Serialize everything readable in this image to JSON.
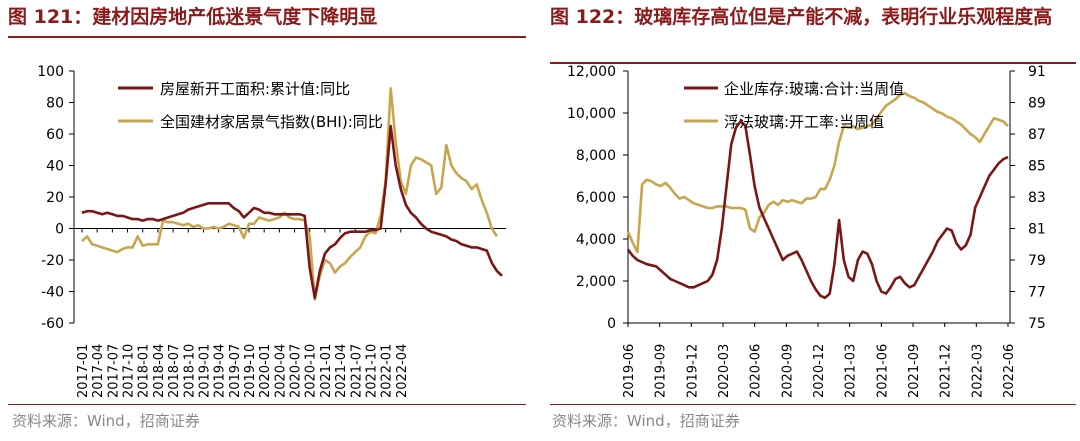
{
  "chart_data": [
    {
      "type": "line",
      "title": "图 121：建材因房地产低迷景气度下降明显",
      "source": "资料来源：Wind，招商证券",
      "ylim": [
        -60,
        100
      ],
      "yticks": [
        "100",
        "80",
        "60",
        "40",
        "20",
        "0",
        "-20",
        "-40",
        "-60"
      ],
      "x_tick_labels": [
        "2017-01",
        "2017-04",
        "2017-07",
        "2017-10",
        "2018-01",
        "2018-04",
        "2018-07",
        "2018-10",
        "2019-01",
        "2019-04",
        "2019-07",
        "2019-10",
        "2020-01",
        "2020-04",
        "2020-07",
        "2020-10",
        "2021-01",
        "2021-04",
        "2021-07",
        "2021-10",
        "2022-01",
        "2022-04"
      ],
      "series": [
        {
          "name": "房屋新开工面积:累计值:同比",
          "color": "#7b1616",
          "values": [
            10,
            11,
            11,
            10,
            9,
            10,
            9,
            8,
            8,
            7,
            6,
            6,
            5,
            6,
            6,
            5,
            6,
            7,
            8,
            9,
            10,
            12,
            13,
            14,
            15,
            16,
            16,
            16,
            16,
            16,
            13,
            11,
            7,
            10,
            13,
            12,
            10,
            10,
            9,
            9,
            9,
            9,
            9,
            9,
            8,
            -25,
            -44,
            -27,
            -16,
            -12,
            -10,
            -6,
            -3,
            -2,
            -2,
            -2,
            -2,
            -1,
            -1,
            0,
            28,
            65,
            40,
            25,
            15,
            10,
            7,
            3,
            0,
            -2,
            -3,
            -4,
            -5,
            -7,
            -8,
            -10,
            -11,
            -12,
            -12,
            -13,
            -14,
            -22,
            -27,
            -30
          ]
        },
        {
          "name": "全国建材家居景气指数(BHI):同比",
          "color": "#c8a64e",
          "values": [
            -8,
            -5,
            -10,
            -11,
            -12,
            -13,
            -14,
            -15,
            -13,
            -12,
            -12,
            -5,
            -11,
            -10,
            -10,
            -10,
            5,
            4,
            4,
            3,
            2,
            3,
            1,
            2,
            0,
            0,
            1,
            0,
            1,
            3,
            2,
            1,
            -6,
            3,
            3,
            7,
            6,
            5,
            6,
            7,
            10,
            7,
            6,
            6,
            5,
            -5,
            -45,
            -30,
            -20,
            -22,
            -28,
            -24,
            -22,
            -18,
            -15,
            -12,
            -5,
            -2,
            -3,
            8,
            30,
            89,
            55,
            30,
            22,
            40,
            45,
            44,
            42,
            40,
            22,
            26,
            53,
            40,
            35,
            32,
            30,
            25,
            28,
            18,
            10,
            0,
            -5
          ]
        }
      ]
    },
    {
      "type": "line",
      "title": "图 122：玻璃库存高位但是产能不减，表明行业乐观程度高",
      "source": "资料来源：Wind，招商证券",
      "ylim_left": [
        0,
        12000
      ],
      "ylim_right": [
        75,
        91
      ],
      "yticks_left": [
        "12,000",
        "10,000",
        "8,000",
        "6,000",
        "4,000",
        "2,000",
        "0"
      ],
      "yticks_right": [
        "91",
        "89",
        "87",
        "85",
        "83",
        "81",
        "79",
        "77",
        "75"
      ],
      "x_tick_labels": [
        "2019-06",
        "2019-09",
        "2019-12",
        "2020-03",
        "2020-06",
        "2020-09",
        "2020-12",
        "2021-03",
        "2021-06",
        "2021-09",
        "2021-12",
        "2022-03",
        "2022-06"
      ],
      "series": [
        {
          "name": "企业库存:玻璃:合计:当周值",
          "axis": "left",
          "color": "#7b1616",
          "values": [
            3500,
            3200,
            3000,
            2900,
            2800,
            2750,
            2700,
            2500,
            2300,
            2100,
            2000,
            1900,
            1800,
            1700,
            1700,
            1800,
            1900,
            2000,
            2300,
            3000,
            4500,
            6500,
            8500,
            9300,
            9600,
            9400,
            8000,
            6500,
            5500,
            5000,
            4500,
            4000,
            3500,
            3000,
            3200,
            3300,
            3400,
            3000,
            2500,
            2000,
            1600,
            1300,
            1200,
            1400,
            2800,
            4900,
            3000,
            2200,
            2000,
            3000,
            3400,
            3300,
            2800,
            2000,
            1500,
            1400,
            1700,
            2100,
            2200,
            1900,
            1700,
            1800,
            2200,
            2600,
            3000,
            3400,
            3900,
            4200,
            4500,
            4400,
            3800,
            3500,
            3700,
            4200,
            5500,
            6000,
            6500,
            7000,
            7300,
            7600,
            7800,
            7900
          ]
        },
        {
          "name": "浮法玻璃:开工率:当周值",
          "axis": "right",
          "color": "#c8a64e",
          "values": [
            80.8,
            80.1,
            79.5,
            83.8,
            84.1,
            84.0,
            83.8,
            83.7,
            83.9,
            83.6,
            83.2,
            82.9,
            83.0,
            82.8,
            82.6,
            82.5,
            82.4,
            82.3,
            82.3,
            82.4,
            82.4,
            82.4,
            82.3,
            82.3,
            82.3,
            82.2,
            81.0,
            80.8,
            81.7,
            82.0,
            82.5,
            82.7,
            82.5,
            82.8,
            82.7,
            82.8,
            82.7,
            82.6,
            82.9,
            82.9,
            83.0,
            83.5,
            83.5,
            84.1,
            85.0,
            86.5,
            87.5,
            87.4,
            87.5,
            87.3,
            87.4,
            87.5,
            87.6,
            88.0,
            88.4,
            88.8,
            89.0,
            89.2,
            89.5,
            89.6,
            89.4,
            89.3,
            89.1,
            89.0,
            88.8,
            88.6,
            88.4,
            88.3,
            88.1,
            88.0,
            87.8,
            87.6,
            87.3,
            87.0,
            86.8,
            86.5,
            87.0,
            87.5,
            88.0,
            87.9,
            87.8,
            87.5
          ]
        }
      ]
    }
  ]
}
